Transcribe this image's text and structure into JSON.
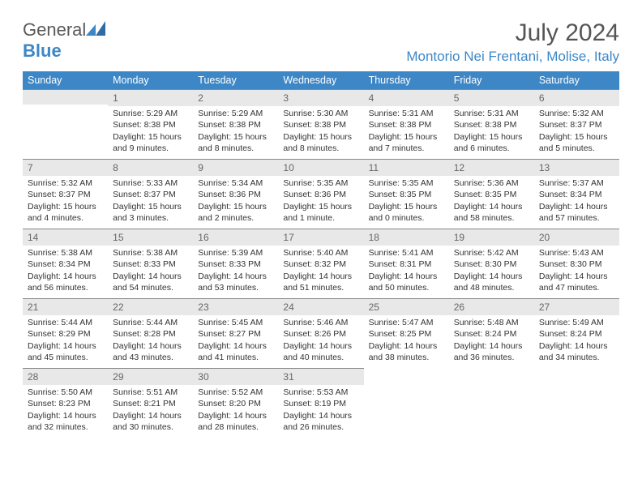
{
  "logo": {
    "text1": "General",
    "text2": "Blue"
  },
  "title": "July 2024",
  "location": "Montorio Nei Frentani, Molise, Italy",
  "colors": {
    "brand": "#3d87c7",
    "header_bg": "#3d87c7",
    "daynum_bg": "#e8e8e8",
    "text": "#333333"
  },
  "weekdays": [
    "Sunday",
    "Monday",
    "Tuesday",
    "Wednesday",
    "Thursday",
    "Friday",
    "Saturday"
  ],
  "first_weekday_index": 1,
  "days": [
    {
      "n": 1,
      "sr": "5:29 AM",
      "ss": "8:38 PM",
      "dl": "15 hours and 9 minutes."
    },
    {
      "n": 2,
      "sr": "5:29 AM",
      "ss": "8:38 PM",
      "dl": "15 hours and 8 minutes."
    },
    {
      "n": 3,
      "sr": "5:30 AM",
      "ss": "8:38 PM",
      "dl": "15 hours and 8 minutes."
    },
    {
      "n": 4,
      "sr": "5:31 AM",
      "ss": "8:38 PM",
      "dl": "15 hours and 7 minutes."
    },
    {
      "n": 5,
      "sr": "5:31 AM",
      "ss": "8:38 PM",
      "dl": "15 hours and 6 minutes."
    },
    {
      "n": 6,
      "sr": "5:32 AM",
      "ss": "8:37 PM",
      "dl": "15 hours and 5 minutes."
    },
    {
      "n": 7,
      "sr": "5:32 AM",
      "ss": "8:37 PM",
      "dl": "15 hours and 4 minutes."
    },
    {
      "n": 8,
      "sr": "5:33 AM",
      "ss": "8:37 PM",
      "dl": "15 hours and 3 minutes."
    },
    {
      "n": 9,
      "sr": "5:34 AM",
      "ss": "8:36 PM",
      "dl": "15 hours and 2 minutes."
    },
    {
      "n": 10,
      "sr": "5:35 AM",
      "ss": "8:36 PM",
      "dl": "15 hours and 1 minute."
    },
    {
      "n": 11,
      "sr": "5:35 AM",
      "ss": "8:35 PM",
      "dl": "15 hours and 0 minutes."
    },
    {
      "n": 12,
      "sr": "5:36 AM",
      "ss": "8:35 PM",
      "dl": "14 hours and 58 minutes."
    },
    {
      "n": 13,
      "sr": "5:37 AM",
      "ss": "8:34 PM",
      "dl": "14 hours and 57 minutes."
    },
    {
      "n": 14,
      "sr": "5:38 AM",
      "ss": "8:34 PM",
      "dl": "14 hours and 56 minutes."
    },
    {
      "n": 15,
      "sr": "5:38 AM",
      "ss": "8:33 PM",
      "dl": "14 hours and 54 minutes."
    },
    {
      "n": 16,
      "sr": "5:39 AM",
      "ss": "8:33 PM",
      "dl": "14 hours and 53 minutes."
    },
    {
      "n": 17,
      "sr": "5:40 AM",
      "ss": "8:32 PM",
      "dl": "14 hours and 51 minutes."
    },
    {
      "n": 18,
      "sr": "5:41 AM",
      "ss": "8:31 PM",
      "dl": "14 hours and 50 minutes."
    },
    {
      "n": 19,
      "sr": "5:42 AM",
      "ss": "8:30 PM",
      "dl": "14 hours and 48 minutes."
    },
    {
      "n": 20,
      "sr": "5:43 AM",
      "ss": "8:30 PM",
      "dl": "14 hours and 47 minutes."
    },
    {
      "n": 21,
      "sr": "5:44 AM",
      "ss": "8:29 PM",
      "dl": "14 hours and 45 minutes."
    },
    {
      "n": 22,
      "sr": "5:44 AM",
      "ss": "8:28 PM",
      "dl": "14 hours and 43 minutes."
    },
    {
      "n": 23,
      "sr": "5:45 AM",
      "ss": "8:27 PM",
      "dl": "14 hours and 41 minutes."
    },
    {
      "n": 24,
      "sr": "5:46 AM",
      "ss": "8:26 PM",
      "dl": "14 hours and 40 minutes."
    },
    {
      "n": 25,
      "sr": "5:47 AM",
      "ss": "8:25 PM",
      "dl": "14 hours and 38 minutes."
    },
    {
      "n": 26,
      "sr": "5:48 AM",
      "ss": "8:24 PM",
      "dl": "14 hours and 36 minutes."
    },
    {
      "n": 27,
      "sr": "5:49 AM",
      "ss": "8:24 PM",
      "dl": "14 hours and 34 minutes."
    },
    {
      "n": 28,
      "sr": "5:50 AM",
      "ss": "8:23 PM",
      "dl": "14 hours and 32 minutes."
    },
    {
      "n": 29,
      "sr": "5:51 AM",
      "ss": "8:21 PM",
      "dl": "14 hours and 30 minutes."
    },
    {
      "n": 30,
      "sr": "5:52 AM",
      "ss": "8:20 PM",
      "dl": "14 hours and 28 minutes."
    },
    {
      "n": 31,
      "sr": "5:53 AM",
      "ss": "8:19 PM",
      "dl": "14 hours and 26 minutes."
    }
  ],
  "labels": {
    "sunrise": "Sunrise:",
    "sunset": "Sunset:",
    "daylight": "Daylight:"
  }
}
